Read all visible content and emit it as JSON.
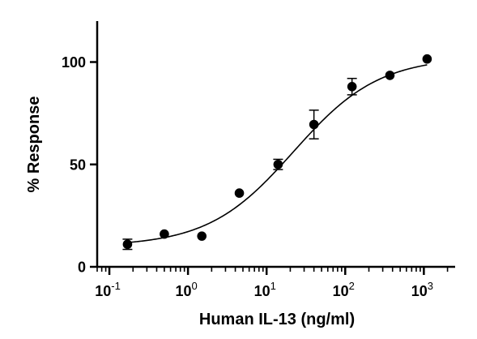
{
  "chart_data": {
    "type": "scatter",
    "xlabel": "Human IL-13 (ng/ml)",
    "ylabel": "% Response",
    "x_scale": "log10",
    "xlim": [
      0.07,
      2500
    ],
    "ylim": [
      0,
      120
    ],
    "x_ticks": [
      {
        "value": 0.1,
        "base": "10",
        "exp": "-1"
      },
      {
        "value": 1,
        "base": "10",
        "exp": "0"
      },
      {
        "value": 10,
        "base": "10",
        "exp": "1"
      },
      {
        "value": 100,
        "base": "10",
        "exp": "2"
      },
      {
        "value": 1000,
        "base": "10",
        "exp": "3"
      }
    ],
    "y_ticks": [
      {
        "value": 0,
        "label": "0"
      },
      {
        "value": 50,
        "label": "50"
      },
      {
        "value": 100,
        "label": "100"
      }
    ],
    "points": [
      {
        "x": 0.17,
        "y": 11,
        "err": 2.5
      },
      {
        "x": 0.5,
        "y": 16,
        "err": 0
      },
      {
        "x": 1.5,
        "y": 15,
        "err": 0
      },
      {
        "x": 4.5,
        "y": 36,
        "err": 0
      },
      {
        "x": 14,
        "y": 50,
        "err": 2.5
      },
      {
        "x": 40,
        "y": 69.5,
        "err": 7
      },
      {
        "x": 122,
        "y": 88,
        "err": 4
      },
      {
        "x": 370,
        "y": 93.5,
        "err": 0
      },
      {
        "x": 1100,
        "y": 101.5,
        "err": 0
      }
    ],
    "fit": {
      "model": "4PL",
      "bottom": 10,
      "top": 102.5,
      "ec50": 22,
      "hill": 0.8
    },
    "grid": false,
    "marker_color": "#000000"
  }
}
